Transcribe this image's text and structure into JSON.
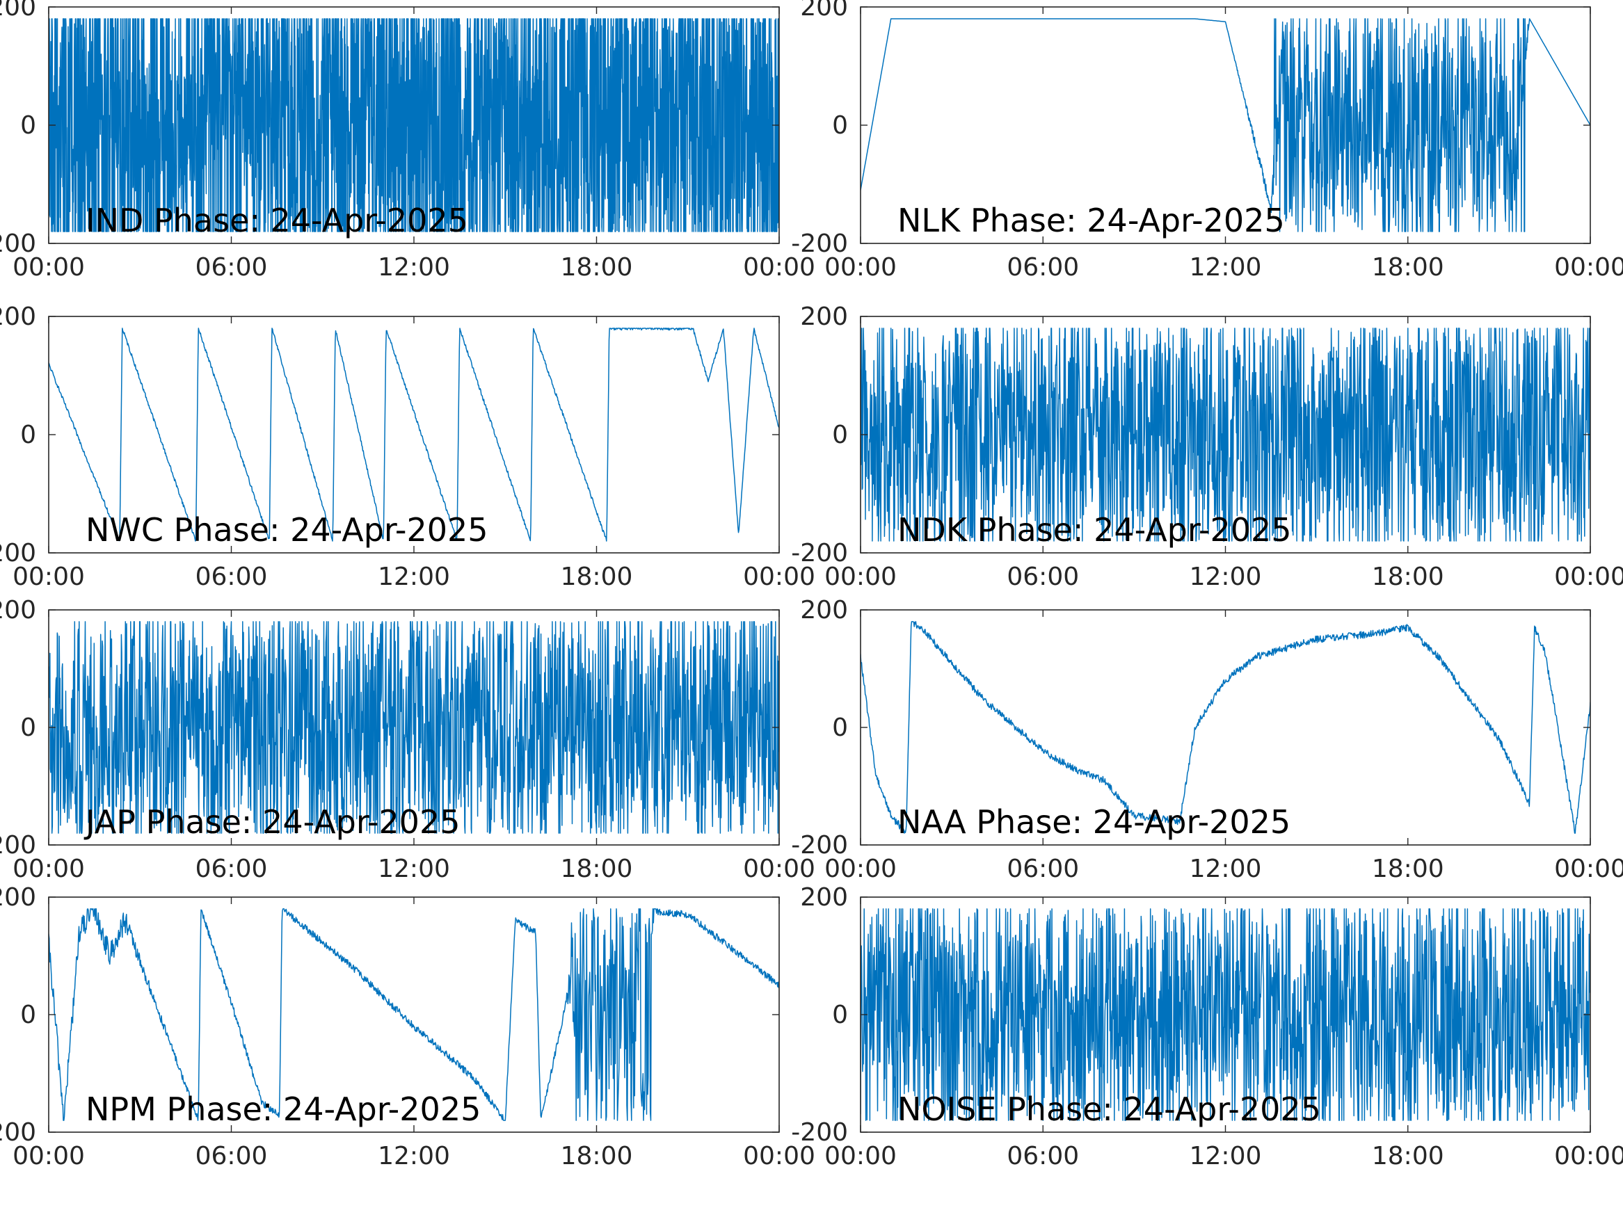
{
  "figure": {
    "date_label": "24-Apr-2025"
  },
  "colors": {
    "trace": "#0072BD",
    "axis": "#262626",
    "label": "#000000",
    "background": "#ffffff"
  },
  "chart_data": [
    {
      "type": "line",
      "title": "IND Phase: 24-Apr-2025",
      "xlabel": "",
      "ylabel": "",
      "xlim": [
        "00:00",
        "00:00"
      ],
      "ylim": [
        -200,
        200
      ],
      "xticks": [
        "00:00",
        "06:00",
        "12:00",
        "18:00",
        "00:00"
      ],
      "yticks": [
        "-200",
        "0",
        "200"
      ],
      "grid": false,
      "series": [
        {
          "style": "wrapped-noise-dense",
          "x": [
            "00:00",
            "02:00",
            "04:00",
            "06:00",
            "07:30",
            "09:00",
            "12:00",
            "15:00",
            "18:00",
            "21:00",
            "22:00",
            "24:00"
          ],
          "y": [
            0,
            60,
            -40,
            80,
            0,
            0,
            0,
            0,
            0,
            0,
            20,
            -20
          ],
          "noise": [
            170,
            170,
            120,
            90,
            180,
            180,
            180,
            180,
            180,
            180,
            170,
            170
          ]
        }
      ]
    },
    {
      "type": "line",
      "title": "NLK Phase: 24-Apr-2025",
      "xlabel": "",
      "ylabel": "",
      "xlim": [
        "00:00",
        "00:00"
      ],
      "ylim": [
        -200,
        200
      ],
      "xticks": [
        "00:00",
        "06:00",
        "12:00",
        "18:00",
        "00:00"
      ],
      "yticks": [
        "-200",
        "0",
        "200"
      ],
      "grid": false,
      "series": [
        {
          "style": "sawtooth-then-noise",
          "x": [
            "00:00",
            "01:00",
            "02:00",
            "03:00",
            "04:00",
            "05:00",
            "06:00",
            "07:00",
            "08:00",
            "09:00",
            "10:00",
            "11:00",
            "12:00",
            "13:30",
            "14:00",
            "16:00",
            "18:00",
            "20:00",
            "21:30",
            "22:00",
            "23:00",
            "24:00"
          ],
          "y": [
            -110,
            180,
            180,
            180,
            180,
            180,
            180,
            180,
            180,
            180,
            180,
            180,
            175,
            -140,
            170,
            -80,
            20,
            0,
            -40,
            180,
            90,
            0
          ],
          "noise": [
            0,
            0,
            0,
            0,
            0,
            0,
            0,
            0,
            0,
            0,
            0,
            0,
            0,
            10,
            160,
            150,
            160,
            160,
            140,
            0,
            0,
            0
          ]
        }
      ]
    },
    {
      "type": "line",
      "title": "NWC Phase: 24-Apr-2025",
      "xlabel": "",
      "ylabel": "",
      "xlim": [
        "00:00",
        "00:00"
      ],
      "ylim": [
        -200,
        200
      ],
      "xticks": [
        "00:00",
        "06:00",
        "12:00",
        "18:00",
        "00:00"
      ],
      "yticks": [
        "-200",
        "0",
        "200"
      ],
      "grid": false,
      "series": [
        {
          "style": "sawtooth",
          "x": [
            "00:00",
            "02:20",
            "02:25",
            "04:50",
            "04:55",
            "07:15",
            "07:20",
            "09:20",
            "09:25",
            "11:00",
            "11:05",
            "13:25",
            "13:30",
            "15:50",
            "15:55",
            "18:20",
            "18:25",
            "21:10",
            "21:40",
            "22:10",
            "22:40",
            "23:10",
            "24:00"
          ],
          "y": [
            120,
            -180,
            180,
            -180,
            180,
            -180,
            180,
            -180,
            180,
            -180,
            180,
            -180,
            180,
            -180,
            180,
            -180,
            180,
            180,
            90,
            180,
            -170,
            180,
            10
          ],
          "noise": [
            3,
            3,
            3,
            3,
            3,
            3,
            3,
            3,
            3,
            3,
            3,
            3,
            3,
            3,
            3,
            3,
            3,
            3,
            3,
            3,
            3,
            3,
            3
          ]
        }
      ]
    },
    {
      "type": "line",
      "title": "NDK Phase: 24-Apr-2025",
      "xlabel": "",
      "ylabel": "",
      "xlim": [
        "00:00",
        "00:00"
      ],
      "ylim": [
        -200,
        200
      ],
      "xticks": [
        "00:00",
        "06:00",
        "12:00",
        "18:00",
        "00:00"
      ],
      "yticks": [
        "-200",
        "0",
        "200"
      ],
      "grid": false,
      "series": [
        {
          "style": "wrapped-noise",
          "x": [
            "00:00",
            "03:00",
            "06:00",
            "09:00",
            "12:00",
            "15:00",
            "18:00",
            "21:00",
            "24:00"
          ],
          "y": [
            0,
            20,
            -20,
            20,
            0,
            10,
            0,
            0,
            0
          ],
          "noise": [
            150,
            160,
            140,
            170,
            170,
            170,
            170,
            170,
            170
          ]
        }
      ]
    },
    {
      "type": "line",
      "title": "JAP Phase: 24-Apr-2025",
      "xlabel": "",
      "ylabel": "",
      "xlim": [
        "00:00",
        "00:00"
      ],
      "ylim": [
        -200,
        200
      ],
      "xticks": [
        "00:00",
        "06:00",
        "12:00",
        "18:00",
        "00:00"
      ],
      "yticks": [
        "-200",
        "0",
        "200"
      ],
      "grid": false,
      "series": [
        {
          "style": "wrapped-noise",
          "x": [
            "00:00",
            "03:00",
            "06:00",
            "09:00",
            "12:00",
            "15:00",
            "18:00",
            "21:00",
            "24:00"
          ],
          "y": [
            0,
            -20,
            30,
            0,
            0,
            0,
            0,
            -10,
            0
          ],
          "noise": [
            160,
            150,
            140,
            170,
            170,
            170,
            170,
            160,
            160
          ]
        }
      ]
    },
    {
      "type": "line",
      "title": "NAA Phase: 24-Apr-2025",
      "xlabel": "",
      "ylabel": "",
      "xlim": [
        "00:00",
        "00:00"
      ],
      "ylim": [
        -200,
        200
      ],
      "xticks": [
        "00:00",
        "06:00",
        "12:00",
        "18:00",
        "00:00"
      ],
      "yticks": [
        "-200",
        "0",
        "200"
      ],
      "grid": false,
      "series": [
        {
          "style": "smooth",
          "x": [
            "00:00",
            "00:30",
            "01:00",
            "01:30",
            "01:40",
            "02:00",
            "04:00",
            "06:00",
            "07:00",
            "08:00",
            "09:00",
            "10:30",
            "11:00",
            "12:00",
            "13:00",
            "15:00",
            "17:00",
            "18:00",
            "19:00",
            "21:00",
            "22:00",
            "22:10",
            "22:30",
            "23:00",
            "23:30",
            "24:00"
          ],
          "y": [
            120,
            -80,
            -150,
            -180,
            180,
            170,
            50,
            -40,
            -70,
            -90,
            -150,
            -160,
            0,
            80,
            120,
            150,
            160,
            170,
            120,
            -20,
            -130,
            170,
            130,
            -20,
            -180,
            40
          ],
          "noise": [
            6,
            6,
            6,
            6,
            6,
            6,
            6,
            6,
            6,
            6,
            6,
            6,
            6,
            6,
            6,
            6,
            6,
            6,
            6,
            6,
            6,
            6,
            6,
            6,
            6,
            6
          ]
        }
      ]
    },
    {
      "type": "line",
      "title": "NPM Phase: 24-Apr-2025",
      "xlabel": "",
      "ylabel": "",
      "xlim": [
        "00:00",
        "00:00"
      ],
      "ylim": [
        -200,
        200
      ],
      "xticks": [
        "00:00",
        "06:00",
        "12:00",
        "18:00",
        "00:00"
      ],
      "yticks": [
        "-200",
        "0",
        "200"
      ],
      "grid": false,
      "series": [
        {
          "style": "mixed",
          "x": [
            "00:00",
            "00:30",
            "01:00",
            "01:30",
            "02:00",
            "02:30",
            "03:00",
            "04:00",
            "04:55",
            "05:00",
            "06:00",
            "07:00",
            "07:35",
            "07:40",
            "10:00",
            "12:00",
            "14:00",
            "15:00",
            "15:20",
            "16:00",
            "16:10",
            "17:00",
            "17:30",
            "18:00",
            "19:00",
            "20:00",
            "21:00",
            "22:00",
            "23:00",
            "24:00"
          ],
          "y": [
            120,
            -180,
            140,
            180,
            100,
            160,
            90,
            -50,
            -180,
            180,
            20,
            -150,
            -170,
            180,
            80,
            -20,
            -110,
            -180,
            160,
            140,
            -180,
            20,
            150,
            175,
            175,
            175,
            170,
            130,
            90,
            50
          ],
          "noise": [
            20,
            20,
            20,
            20,
            20,
            20,
            10,
            6,
            6,
            6,
            6,
            6,
            6,
            6,
            6,
            6,
            6,
            6,
            6,
            6,
            6,
            6,
            180,
            180,
            180,
            6,
            6,
            6,
            6,
            6
          ]
        }
      ]
    },
    {
      "type": "line",
      "title": "NOISE Phase: 24-Apr-2025",
      "xlabel": "",
      "ylabel": "",
      "xlim": [
        "00:00",
        "00:00"
      ],
      "ylim": [
        -200,
        200
      ],
      "xticks": [
        "00:00",
        "06:00",
        "12:00",
        "18:00",
        "00:00"
      ],
      "yticks": [
        "-200",
        "0",
        "200"
      ],
      "grid": false,
      "series": [
        {
          "style": "wrapped-noise",
          "x": [
            "00:00",
            "03:00",
            "06:00",
            "09:00",
            "12:00",
            "15:00",
            "18:00",
            "21:00",
            "24:00"
          ],
          "y": [
            0,
            20,
            -20,
            10,
            0,
            0,
            10,
            -10,
            0
          ],
          "noise": [
            160,
            160,
            160,
            160,
            150,
            160,
            160,
            160,
            160
          ]
        }
      ]
    }
  ]
}
